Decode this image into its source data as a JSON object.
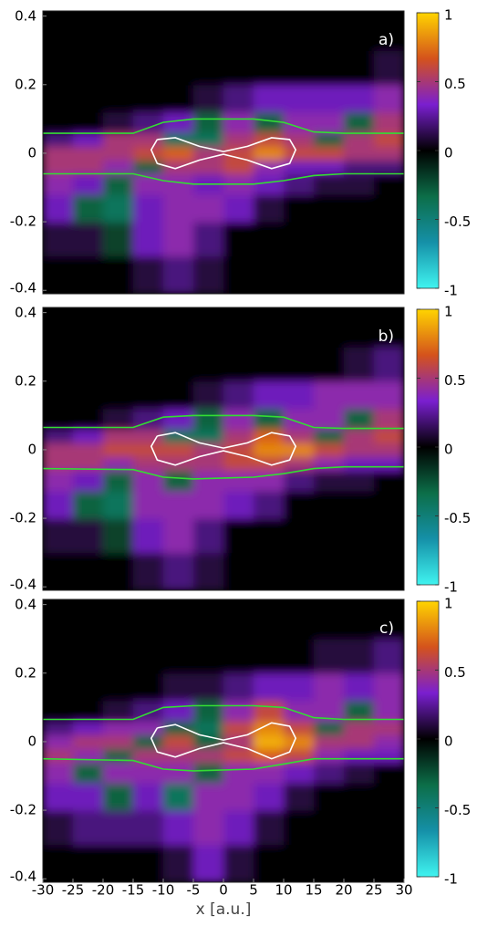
{
  "chart_data": [
    {
      "type": "heatmap",
      "panel_label": "a)",
      "xlim": [
        -30,
        30
      ],
      "ylim": [
        -0.41,
        0.415
      ],
      "yticks": [
        -0.4,
        -0.2,
        0,
        0.2,
        0.4
      ],
      "x_bins": [
        -30,
        -25,
        -20,
        -15,
        -10,
        -5,
        0,
        5,
        10,
        15,
        20,
        25,
        30
      ],
      "y_bins": [
        -0.41,
        -0.3,
        -0.2,
        -0.12,
        -0.06,
        -0.02,
        0.02,
        0.06,
        0.12,
        0.2,
        0.3,
        0.415
      ],
      "z": [
        [
          0,
          0,
          0,
          0.1,
          0.2,
          0.1,
          0,
          0,
          0,
          0,
          0,
          0
        ],
        [
          0.1,
          0.1,
          -0.2,
          0.3,
          0.4,
          0.2,
          0,
          0,
          0,
          0,
          0,
          0
        ],
        [
          0.3,
          -0.3,
          -0.4,
          0.3,
          0.4,
          0.4,
          0.3,
          0.1,
          0,
          0,
          0,
          0
        ],
        [
          0.4,
          0.3,
          -0.3,
          0.4,
          0.4,
          0.3,
          0.4,
          0.3,
          0.2,
          0.1,
          0.1,
          0
        ],
        [
          0.5,
          0.5,
          0.4,
          -0.3,
          0.5,
          0.5,
          0.6,
          0.4,
          0.3,
          0.3,
          0.2,
          0.2
        ],
        [
          0.5,
          0.5,
          0.5,
          0.6,
          0.7,
          0.5,
          0.6,
          0.8,
          0.6,
          0.6,
          0.5,
          0.5
        ],
        [
          0.2,
          0.3,
          0.5,
          0.5,
          -0.4,
          -0.4,
          0.5,
          0.6,
          0.5,
          -0.3,
          0.5,
          0.6
        ],
        [
          0,
          0,
          0.1,
          0.2,
          0.3,
          -0.3,
          0.4,
          -0.3,
          0.4,
          0.4,
          -0.3,
          0.5
        ],
        [
          0,
          0,
          0,
          0,
          0,
          0.1,
          0.2,
          0.3,
          0.3,
          0.3,
          0.3,
          0.4
        ],
        [
          0,
          0,
          0,
          0,
          0,
          0,
          0,
          0,
          0,
          0,
          0,
          0.1
        ],
        [
          0,
          0,
          0,
          0,
          0,
          0,
          0,
          0,
          0,
          0,
          0,
          0
        ]
      ],
      "zlim": [
        -1,
        1
      ],
      "colorbar_ticks": [
        1,
        0.5,
        0,
        -0.5,
        -1
      ],
      "colormap": [
        "#40f4f0",
        "#1590a8",
        "#0c6e48",
        "#000000",
        "#7a1fd0",
        "#d4521c",
        "#ffd400"
      ],
      "lines": [
        {
          "color": "#33dd33",
          "x": [
            -30,
            -15,
            -10,
            -5,
            5,
            10,
            15,
            20,
            30
          ],
          "y": [
            0.058,
            0.058,
            0.09,
            0.1,
            0.1,
            0.09,
            0.062,
            0.058,
            0.058
          ]
        },
        {
          "color": "#33dd33",
          "x": [
            -30,
            -15,
            -10,
            -5,
            5,
            10,
            15,
            20,
            30
          ],
          "y": [
            -0.06,
            -0.06,
            -0.08,
            -0.09,
            -0.09,
            -0.08,
            -0.065,
            -0.06,
            -0.06
          ]
        }
      ],
      "contour": {
        "color": "#ffffff",
        "x": [
          -11,
          -8,
          -4,
          0,
          4,
          8,
          11,
          12,
          11,
          8,
          4,
          0,
          -4,
          -8,
          -11,
          -12,
          -11
        ],
        "y": [
          0.04,
          0.045,
          0.02,
          0.005,
          0.02,
          0.045,
          0.04,
          0.01,
          -0.03,
          -0.045,
          -0.02,
          -0.003,
          -0.02,
          -0.045,
          -0.03,
          0.01,
          0.04
        ]
      }
    },
    {
      "type": "heatmap",
      "panel_label": "b)",
      "xlim": [
        -30,
        30
      ],
      "ylim": [
        -0.41,
        0.415
      ],
      "yticks": [
        -0.4,
        -0.2,
        0,
        0.2,
        0.4
      ],
      "x_bins": [
        -30,
        -25,
        -20,
        -15,
        -10,
        -5,
        0,
        5,
        10,
        15,
        20,
        25,
        30
      ],
      "y_bins": [
        -0.41,
        -0.3,
        -0.2,
        -0.12,
        -0.06,
        -0.02,
        0.02,
        0.06,
        0.12,
        0.2,
        0.3,
        0.415
      ],
      "z": [
        [
          0,
          0,
          0,
          0.1,
          0.2,
          0.1,
          0,
          0,
          0,
          0,
          0,
          0
        ],
        [
          0.1,
          0.1,
          -0.2,
          0.3,
          0.4,
          0.2,
          0,
          0,
          0,
          0,
          0,
          0
        ],
        [
          0.3,
          -0.3,
          -0.4,
          0.4,
          0.4,
          0.4,
          0.3,
          0.2,
          0,
          0,
          0,
          0
        ],
        [
          0.4,
          0.3,
          -0.3,
          0.4,
          -0.3,
          0.4,
          0.4,
          0.4,
          0.2,
          0.1,
          0.1,
          0
        ],
        [
          0.5,
          0.5,
          0.4,
          0.5,
          0.5,
          0.5,
          0.6,
          0.6,
          0.5,
          0.4,
          0.3,
          0.3
        ],
        [
          0.5,
          0.5,
          0.6,
          0.6,
          0.6,
          0.5,
          0.6,
          0.8,
          0.8,
          0.6,
          0.5,
          0.5
        ],
        [
          0.2,
          0.3,
          0.5,
          0.5,
          -0.4,
          -0.4,
          0.5,
          0.7,
          0.5,
          -0.3,
          0.5,
          0.6
        ],
        [
          0,
          0,
          0.1,
          0.2,
          0.3,
          -0.3,
          0.4,
          -0.3,
          0.4,
          0.4,
          -0.3,
          0.5
        ],
        [
          0,
          0,
          0,
          0,
          0,
          0.1,
          0.2,
          0.3,
          0.3,
          0.4,
          0.4,
          0.4
        ],
        [
          0,
          0,
          0,
          0,
          0,
          0,
          0,
          0,
          0,
          0,
          0.1,
          0.2
        ],
        [
          0,
          0,
          0,
          0,
          0,
          0,
          0,
          0,
          0,
          0,
          0,
          0
        ]
      ],
      "zlim": [
        -1,
        1
      ],
      "colorbar_ticks": [
        1,
        0.5,
        0,
        -0.5,
        -1
      ],
      "colormap": [
        "#40f4f0",
        "#1590a8",
        "#0c6e48",
        "#000000",
        "#7a1fd0",
        "#d4521c",
        "#ffd400"
      ],
      "lines": [
        {
          "color": "#33dd33",
          "x": [
            -30,
            -15,
            -10,
            -5,
            5,
            10,
            15,
            20,
            30
          ],
          "y": [
            0.065,
            0.065,
            0.095,
            0.1,
            0.1,
            0.095,
            0.065,
            0.062,
            0.062
          ]
        },
        {
          "color": "#33dd33",
          "x": [
            -30,
            -15,
            -10,
            -5,
            5,
            10,
            15,
            20,
            30
          ],
          "y": [
            -0.055,
            -0.058,
            -0.08,
            -0.085,
            -0.08,
            -0.07,
            -0.055,
            -0.05,
            -0.05
          ]
        }
      ],
      "contour": {
        "color": "#ffffff",
        "x": [
          -11,
          -8,
          -4,
          0,
          4,
          8,
          11,
          12,
          11,
          8,
          4,
          0,
          -4,
          -8,
          -11,
          -12,
          -11
        ],
        "y": [
          0.04,
          0.05,
          0.02,
          0.005,
          0.02,
          0.05,
          0.04,
          0.01,
          -0.03,
          -0.045,
          -0.02,
          -0.003,
          -0.02,
          -0.045,
          -0.03,
          0.01,
          0.04
        ]
      }
    },
    {
      "type": "heatmap",
      "panel_label": "c)",
      "xlabel": "x [a.u.]",
      "xlim": [
        -30,
        30
      ],
      "ylim": [
        -0.41,
        0.415
      ],
      "yticks": [
        -0.4,
        -0.2,
        0,
        0.2,
        0.4
      ],
      "xticks": [
        -30,
        -25,
        -20,
        -15,
        -10,
        -5,
        0,
        5,
        10,
        15,
        20,
        25,
        30
      ],
      "x_bins": [
        -30,
        -25,
        -20,
        -15,
        -10,
        -5,
        0,
        5,
        10,
        15,
        20,
        25,
        30
      ],
      "y_bins": [
        -0.41,
        -0.3,
        -0.2,
        -0.12,
        -0.06,
        -0.02,
        0.02,
        0.06,
        0.12,
        0.2,
        0.3,
        0.415
      ],
      "z": [
        [
          0,
          0,
          0,
          0,
          0.1,
          0.3,
          0.1,
          0,
          0,
          0,
          0,
          0
        ],
        [
          0.1,
          0.2,
          0.2,
          0.2,
          0.3,
          0.4,
          0.3,
          0.1,
          0,
          0,
          0,
          0
        ],
        [
          0.3,
          0.3,
          -0.3,
          0.3,
          -0.4,
          0.4,
          0.4,
          0.3,
          0.1,
          0,
          0,
          0
        ],
        [
          0.4,
          -0.3,
          0.4,
          0.4,
          0.4,
          -0.3,
          0.4,
          0.4,
          0.3,
          0.2,
          0.1,
          0
        ],
        [
          0.5,
          0.4,
          -0.3,
          0.5,
          0.5,
          0.5,
          0.6,
          0.7,
          0.6,
          0.4,
          0.3,
          0.3
        ],
        [
          0.4,
          0.5,
          0.5,
          -0.3,
          0.6,
          -0.3,
          0.5,
          0.9,
          0.8,
          0.5,
          0.5,
          0.4
        ],
        [
          0.2,
          0.3,
          0.4,
          0.4,
          -0.3,
          -0.4,
          0.6,
          0.8,
          0.6,
          -0.3,
          0.5,
          0.5
        ],
        [
          0,
          0,
          0.1,
          0.2,
          0.3,
          -0.3,
          0.4,
          0.6,
          0.4,
          0.4,
          -0.3,
          0.4
        ],
        [
          0,
          0,
          0,
          0,
          0.1,
          0.1,
          0.2,
          0.3,
          0.3,
          0.4,
          0.3,
          0.4
        ],
        [
          0,
          0,
          0,
          0,
          0,
          0,
          0,
          0,
          0,
          0.1,
          0.1,
          0.2
        ],
        [
          0,
          0,
          0,
          0,
          0,
          0,
          0,
          0,
          0,
          0,
          0,
          0
        ]
      ],
      "zlim": [
        -1,
        1
      ],
      "colorbar_ticks": [
        1,
        0.5,
        0,
        -0.5,
        -1
      ],
      "colormap": [
        "#40f4f0",
        "#1590a8",
        "#0c6e48",
        "#000000",
        "#7a1fd0",
        "#d4521c",
        "#ffd400"
      ],
      "lines": [
        {
          "color": "#33dd33",
          "x": [
            -30,
            -15,
            -10,
            -5,
            5,
            10,
            15,
            20,
            30
          ],
          "y": [
            0.065,
            0.065,
            0.1,
            0.105,
            0.105,
            0.1,
            0.07,
            0.065,
            0.065
          ]
        },
        {
          "color": "#33dd33",
          "x": [
            -30,
            -15,
            -10,
            -5,
            5,
            10,
            15,
            20,
            30
          ],
          "y": [
            -0.05,
            -0.055,
            -0.08,
            -0.085,
            -0.08,
            -0.065,
            -0.05,
            -0.05,
            -0.05
          ]
        }
      ],
      "contour": {
        "color": "#ffffff",
        "x": [
          -11,
          -8,
          -4,
          0,
          4,
          8,
          11,
          12,
          11,
          8,
          4,
          0,
          -4,
          -8,
          -11,
          -12,
          -11
        ],
        "y": [
          0.04,
          0.05,
          0.02,
          0.005,
          0.02,
          0.055,
          0.045,
          0.01,
          -0.03,
          -0.05,
          -0.02,
          -0.003,
          -0.02,
          -0.045,
          -0.03,
          0.01,
          0.04
        ]
      }
    }
  ]
}
